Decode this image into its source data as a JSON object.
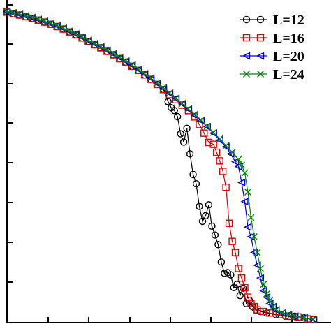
{
  "chart_data": {
    "type": "line",
    "title": "",
    "xlabel": "",
    "ylabel": "",
    "xlim": [
      0,
      1
    ],
    "ylim": [
      0,
      1
    ],
    "legend_position": "top-right",
    "series": [
      {
        "name": "L=12",
        "color": "#000000",
        "marker": "circle",
        "points": [
          [
            0.0,
            0.975
          ],
          [
            0.02,
            0.97
          ],
          [
            0.04,
            0.966
          ],
          [
            0.06,
            0.961
          ],
          [
            0.08,
            0.956
          ],
          [
            0.1,
            0.95
          ],
          [
            0.12,
            0.944
          ],
          [
            0.14,
            0.937
          ],
          [
            0.16,
            0.93
          ],
          [
            0.18,
            0.922
          ],
          [
            0.2,
            0.913
          ],
          [
            0.22,
            0.904
          ],
          [
            0.24,
            0.894
          ],
          [
            0.26,
            0.883
          ],
          [
            0.28,
            0.873
          ],
          [
            0.3,
            0.863
          ],
          [
            0.32,
            0.852
          ],
          [
            0.34,
            0.841
          ],
          [
            0.36,
            0.829
          ],
          [
            0.38,
            0.818
          ],
          [
            0.4,
            0.805
          ],
          [
            0.42,
            0.792
          ],
          [
            0.44,
            0.778
          ],
          [
            0.46,
            0.764
          ],
          [
            0.48,
            0.748
          ],
          [
            0.5,
            0.732
          ],
          [
            0.515,
            0.694
          ],
          [
            0.525,
            0.675
          ],
          [
            0.535,
            0.666
          ],
          [
            0.545,
            0.647
          ],
          [
            0.555,
            0.593
          ],
          [
            0.565,
            0.567
          ],
          [
            0.575,
            0.61
          ],
          [
            0.585,
            0.53
          ],
          [
            0.595,
            0.465
          ],
          [
            0.605,
            0.436
          ],
          [
            0.615,
            0.365
          ],
          [
            0.625,
            0.318
          ],
          [
            0.635,
            0.336
          ],
          [
            0.645,
            0.37
          ],
          [
            0.655,
            0.303
          ],
          [
            0.665,
            0.275
          ],
          [
            0.675,
            0.245
          ],
          [
            0.685,
            0.19
          ],
          [
            0.695,
            0.155
          ],
          [
            0.705,
            0.157
          ],
          [
            0.715,
            0.15
          ],
          [
            0.725,
            0.11
          ],
          [
            0.735,
            0.12
          ],
          [
            0.745,
            0.085
          ],
          [
            0.755,
            0.108
          ],
          [
            0.765,
            0.06
          ],
          [
            0.775,
            0.07
          ],
          [
            0.785,
            0.05
          ],
          [
            0.795,
            0.04
          ],
          [
            0.81,
            0.035
          ],
          [
            0.83,
            0.03
          ],
          [
            0.86,
            0.025
          ],
          [
            0.89,
            0.02
          ],
          [
            0.92,
            0.02
          ],
          [
            0.95,
            0.015
          ],
          [
            0.98,
            0.01
          ]
        ]
      },
      {
        "name": "L=16",
        "color": "#e00000",
        "marker": "square",
        "points": [
          [
            0.0,
            0.975
          ],
          [
            0.02,
            0.97
          ],
          [
            0.04,
            0.966
          ],
          [
            0.06,
            0.961
          ],
          [
            0.08,
            0.956
          ],
          [
            0.1,
            0.95
          ],
          [
            0.12,
            0.944
          ],
          [
            0.14,
            0.937
          ],
          [
            0.16,
            0.93
          ],
          [
            0.18,
            0.922
          ],
          [
            0.2,
            0.913
          ],
          [
            0.22,
            0.904
          ],
          [
            0.24,
            0.894
          ],
          [
            0.26,
            0.883
          ],
          [
            0.28,
            0.873
          ],
          [
            0.3,
            0.863
          ],
          [
            0.32,
            0.852
          ],
          [
            0.34,
            0.841
          ],
          [
            0.36,
            0.829
          ],
          [
            0.38,
            0.818
          ],
          [
            0.4,
            0.805
          ],
          [
            0.42,
            0.792
          ],
          [
            0.44,
            0.778
          ],
          [
            0.46,
            0.764
          ],
          [
            0.48,
            0.748
          ],
          [
            0.5,
            0.732
          ],
          [
            0.52,
            0.716
          ],
          [
            0.54,
            0.7
          ],
          [
            0.56,
            0.683
          ],
          [
            0.58,
            0.666
          ],
          [
            0.6,
            0.646
          ],
          [
            0.615,
            0.622
          ],
          [
            0.63,
            0.595
          ],
          [
            0.645,
            0.566
          ],
          [
            0.66,
            0.56
          ],
          [
            0.67,
            0.535
          ],
          [
            0.68,
            0.508
          ],
          [
            0.69,
            0.475
          ],
          [
            0.7,
            0.425
          ],
          [
            0.71,
            0.312
          ],
          [
            0.72,
            0.255
          ],
          [
            0.73,
            0.22
          ],
          [
            0.74,
            0.17
          ],
          [
            0.75,
            0.14
          ],
          [
            0.76,
            0.11
          ],
          [
            0.77,
            0.08
          ],
          [
            0.78,
            0.06
          ],
          [
            0.79,
            0.05
          ],
          [
            0.8,
            0.04
          ],
          [
            0.82,
            0.035
          ],
          [
            0.84,
            0.03
          ],
          [
            0.87,
            0.025
          ],
          [
            0.9,
            0.02
          ],
          [
            0.93,
            0.018
          ],
          [
            0.96,
            0.012
          ],
          [
            0.98,
            0.01
          ]
        ]
      },
      {
        "name": "L=20",
        "color": "#0000e0",
        "marker": "triangle-left",
        "points": [
          [
            0.0,
            0.977
          ],
          [
            0.02,
            0.972
          ],
          [
            0.04,
            0.968
          ],
          [
            0.06,
            0.963
          ],
          [
            0.08,
            0.958
          ],
          [
            0.1,
            0.952
          ],
          [
            0.12,
            0.946
          ],
          [
            0.14,
            0.939
          ],
          [
            0.16,
            0.932
          ],
          [
            0.18,
            0.924
          ],
          [
            0.2,
            0.915
          ],
          [
            0.22,
            0.906
          ],
          [
            0.24,
            0.896
          ],
          [
            0.26,
            0.886
          ],
          [
            0.28,
            0.876
          ],
          [
            0.3,
            0.866
          ],
          [
            0.32,
            0.855
          ],
          [
            0.34,
            0.844
          ],
          [
            0.36,
            0.832
          ],
          [
            0.38,
            0.821
          ],
          [
            0.4,
            0.808
          ],
          [
            0.42,
            0.795
          ],
          [
            0.44,
            0.781
          ],
          [
            0.46,
            0.767
          ],
          [
            0.48,
            0.751
          ],
          [
            0.5,
            0.736
          ],
          [
            0.52,
            0.72
          ],
          [
            0.54,
            0.704
          ],
          [
            0.56,
            0.687
          ],
          [
            0.58,
            0.67
          ],
          [
            0.6,
            0.652
          ],
          [
            0.62,
            0.634
          ],
          [
            0.64,
            0.615
          ],
          [
            0.66,
            0.595
          ],
          [
            0.68,
            0.573
          ],
          [
            0.7,
            0.552
          ],
          [
            0.715,
            0.53
          ],
          [
            0.73,
            0.505
          ],
          [
            0.74,
            0.49
          ],
          [
            0.75,
            0.44
          ],
          [
            0.76,
            0.38
          ],
          [
            0.77,
            0.3
          ],
          [
            0.78,
            0.27
          ],
          [
            0.79,
            0.22
          ],
          [
            0.8,
            0.18
          ],
          [
            0.81,
            0.14
          ],
          [
            0.82,
            0.1
          ],
          [
            0.83,
            0.08
          ],
          [
            0.84,
            0.06
          ],
          [
            0.85,
            0.05
          ],
          [
            0.86,
            0.04
          ],
          [
            0.88,
            0.03
          ],
          [
            0.9,
            0.025
          ],
          [
            0.92,
            0.02
          ],
          [
            0.95,
            0.015
          ],
          [
            0.98,
            0.01
          ]
        ]
      },
      {
        "name": "L=24",
        "color": "#008800",
        "marker": "x",
        "points": [
          [
            0.0,
            0.978
          ],
          [
            0.02,
            0.974
          ],
          [
            0.04,
            0.969
          ],
          [
            0.06,
            0.964
          ],
          [
            0.08,
            0.959
          ],
          [
            0.1,
            0.953
          ],
          [
            0.12,
            0.947
          ],
          [
            0.14,
            0.94
          ],
          [
            0.16,
            0.933
          ],
          [
            0.18,
            0.925
          ],
          [
            0.2,
            0.916
          ],
          [
            0.22,
            0.907
          ],
          [
            0.24,
            0.897
          ],
          [
            0.26,
            0.887
          ],
          [
            0.28,
            0.877
          ],
          [
            0.3,
            0.867
          ],
          [
            0.32,
            0.856
          ],
          [
            0.34,
            0.845
          ],
          [
            0.36,
            0.833
          ],
          [
            0.38,
            0.822
          ],
          [
            0.4,
            0.809
          ],
          [
            0.42,
            0.796
          ],
          [
            0.44,
            0.782
          ],
          [
            0.46,
            0.768
          ],
          [
            0.48,
            0.752
          ],
          [
            0.5,
            0.737
          ],
          [
            0.52,
            0.721
          ],
          [
            0.54,
            0.705
          ],
          [
            0.56,
            0.688
          ],
          [
            0.58,
            0.671
          ],
          [
            0.6,
            0.654
          ],
          [
            0.62,
            0.636
          ],
          [
            0.64,
            0.617
          ],
          [
            0.66,
            0.597
          ],
          [
            0.68,
            0.577
          ],
          [
            0.7,
            0.556
          ],
          [
            0.72,
            0.535
          ],
          [
            0.74,
            0.513
          ],
          [
            0.75,
            0.495
          ],
          [
            0.76,
            0.47
          ],
          [
            0.77,
            0.41
          ],
          [
            0.78,
            0.33
          ],
          [
            0.79,
            0.27
          ],
          [
            0.8,
            0.22
          ],
          [
            0.81,
            0.17
          ],
          [
            0.82,
            0.12
          ],
          [
            0.83,
            0.09
          ],
          [
            0.84,
            0.07
          ],
          [
            0.85,
            0.05
          ],
          [
            0.86,
            0.04
          ],
          [
            0.88,
            0.03
          ],
          [
            0.9,
            0.025
          ],
          [
            0.92,
            0.02
          ],
          [
            0.95,
            0.015
          ],
          [
            0.98,
            0.01
          ]
        ]
      }
    ]
  }
}
